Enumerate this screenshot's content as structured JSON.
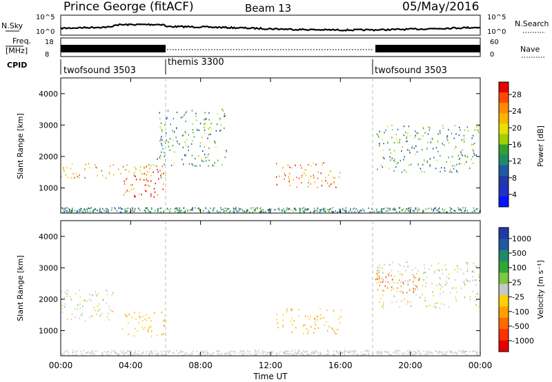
{
  "header": {
    "station": "Prince George (fitACF)",
    "beam": "Beam 13",
    "date": "05/May/2016"
  },
  "panels": {
    "nsky": {
      "left_label": "N.Sky",
      "left_ticks": [
        "10^5",
        "10^0"
      ],
      "right_label": "N.Search",
      "right_ticks": [
        "10^5",
        "10^0"
      ]
    },
    "freq": {
      "left_label_1": "Freq.",
      "left_label_2": "[MHz]",
      "left_ticks": [
        "18",
        "8"
      ],
      "right_label": "Nave",
      "right_ticks": [
        "60",
        "0"
      ]
    },
    "cpid": {
      "label": "CPID",
      "segments": [
        {
          "name": "twofsound 3503",
          "start": 0,
          "end": 6
        },
        {
          "name": "themis 3300",
          "start": 6,
          "end": 18
        },
        {
          "name": "twofsound 3503",
          "start": 18,
          "end": 24
        }
      ]
    }
  },
  "colorbars": {
    "power": {
      "label": "Power [dB]",
      "ticks": [
        "28",
        "24",
        "20",
        "16",
        "12",
        "8",
        "4"
      ],
      "colors": [
        "#e60000",
        "#ff4a00",
        "#ff8c00",
        "#ffb400",
        "#e8e000",
        "#a0d000",
        "#30a030",
        "#1f8a6a",
        "#1f5aa0",
        "#1f3aa8",
        "#2030c8",
        "#0014ff"
      ]
    },
    "velocity": {
      "label": "Velocity [m s⁻¹]",
      "ticks": [
        "1000",
        "500",
        "100",
        "25",
        "-25",
        "-100",
        "-500",
        "-1000"
      ],
      "colors": [
        "#1f3aa8",
        "#1f5aa0",
        "#1f8a6a",
        "#35a535",
        "#7cc840",
        "#c8c8c8",
        "#ffd000",
        "#ffa000",
        "#ff6a00",
        "#ff3000",
        "#e60000"
      ]
    }
  },
  "axes": {
    "xlabel": "Time UT",
    "xticks": [
      "00:00",
      "04:00",
      "08:00",
      "12:00",
      "16:00",
      "20:00",
      "00:00"
    ],
    "ylabel": "Slant Range [km]",
    "yticks": [
      "4000",
      "3000",
      "2000",
      "1000"
    ]
  },
  "chart_data": [
    {
      "type": "heatmap",
      "title": "Prince George (fitACF) Beam 13 05/May/2016",
      "variable": "Power [dB]",
      "xlabel": "Time UT",
      "ylabel": "Slant Range [km]",
      "xlim_hours": [
        0,
        24
      ],
      "ylim_km": [
        200,
        4500
      ],
      "zlim": [
        0,
        30
      ],
      "regions": [
        {
          "t0": 0.0,
          "t1": 6.0,
          "r0": 1300,
          "r1": 1800,
          "value": 20
        },
        {
          "t0": 3.5,
          "t1": 5.9,
          "r0": 700,
          "r1": 1600,
          "value": 28
        },
        {
          "t0": 5.5,
          "t1": 9.5,
          "r0": 1700,
          "r1": 3500,
          "value": 12
        },
        {
          "t0": 12.3,
          "t1": 16.0,
          "r0": 1000,
          "r1": 1800,
          "value": 24
        },
        {
          "t0": 18.0,
          "t1": 24.0,
          "r0": 1500,
          "r1": 3000,
          "value": 12
        }
      ]
    },
    {
      "type": "heatmap",
      "title": "Prince George (fitACF) Beam 13 05/May/2016",
      "variable": "Velocity [m s-1]",
      "xlabel": "Time UT",
      "ylabel": "Slant Range [km]",
      "xlim_hours": [
        0,
        24
      ],
      "ylim_km": [
        200,
        4500
      ],
      "zlim": [
        -1000,
        1000
      ],
      "regions": [
        {
          "t0": 0.0,
          "t1": 3.0,
          "r0": 1300,
          "r1": 2300,
          "value": 0
        },
        {
          "t0": 3.5,
          "t1": 6.0,
          "r0": 800,
          "r1": 1600,
          "value": -300
        },
        {
          "t0": 12.3,
          "t1": 16.0,
          "r0": 900,
          "r1": 1700,
          "value": -250
        },
        {
          "t0": 18.0,
          "t1": 20.5,
          "r0": 2200,
          "r1": 2800,
          "value": -700
        },
        {
          "t0": 18.0,
          "t1": 24.0,
          "r0": 1700,
          "r1": 3200,
          "value": 0
        }
      ]
    }
  ]
}
